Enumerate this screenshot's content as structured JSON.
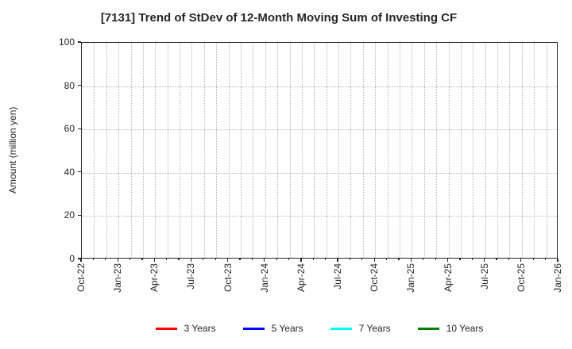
{
  "chart_data": {
    "type": "line",
    "title": "[7131]  Trend of StDev of 12-Month Moving Sum of Investing CF",
    "ylabel": "Amount (million yen)",
    "xlabel": "",
    "ylim": [
      0,
      100
    ],
    "yticks": [
      0,
      20,
      40,
      60,
      80,
      100
    ],
    "x_ticklabels": [
      "Oct-22",
      "Jan-23",
      "Apr-23",
      "Jul-23",
      "Oct-23",
      "Jan-24",
      "Apr-24",
      "Jul-24",
      "Oct-24",
      "Jan-25",
      "Apr-25",
      "Jul-25",
      "Oct-25",
      "Jan-26"
    ],
    "x_major_interval_months": 3,
    "months_total": 39,
    "grid": true,
    "grid_style": "dotted",
    "plot_empty": true,
    "legend_position": "bottom-center",
    "series": [
      {
        "name": "3 Years",
        "color": "#ff0000",
        "values": []
      },
      {
        "name": "5 Years",
        "color": "#0000ff",
        "values": []
      },
      {
        "name": "7 Years",
        "color": "#00ffff",
        "values": []
      },
      {
        "name": "10 Years",
        "color": "#008000",
        "values": []
      }
    ]
  },
  "colors": {
    "background": "#ffffff",
    "axis_frame": "#262626",
    "text": "#262626",
    "gridline": "#b5b5b5"
  }
}
